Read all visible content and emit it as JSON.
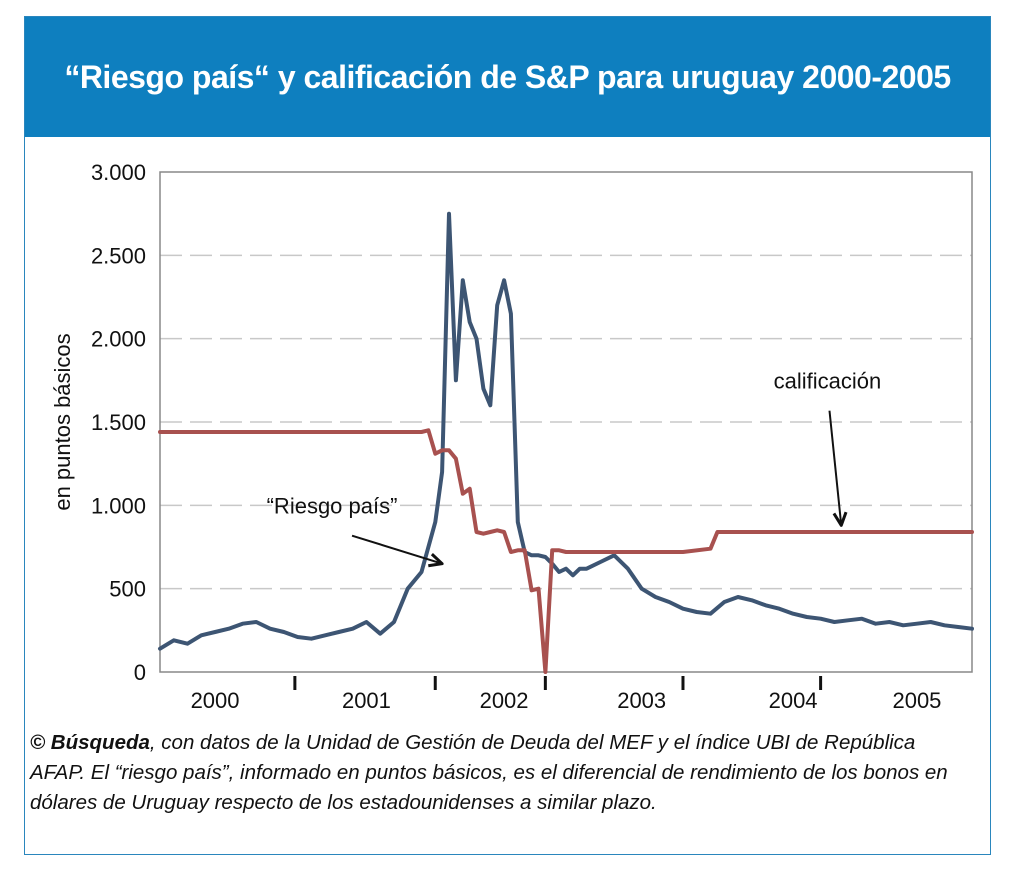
{
  "title": "“Riesgo país“ y calificación de S&P para uruguay 2000-2005",
  "caption": {
    "source_bold": "© Búsqueda",
    "text": ", con datos de la Unidad de Gestión de Deuda del MEF y el índice UBI de República AFAP. El “riesgo país”, informado en puntos básicos, es el diferencial de rendimiento de los bonos en dólares de Uruguay respecto de los estadounidenses a similar plazo."
  },
  "colors": {
    "header": "#0e7fbf",
    "riesgo": "#3d5573",
    "calificacion": "#a8514f",
    "grid": "#c8c8c8"
  },
  "chart_data": {
    "type": "line",
    "ylabel": "en puntos básicos",
    "ylim": [
      0,
      3000
    ],
    "yticks": [
      0,
      500,
      1000,
      1500,
      2000,
      2500,
      3000
    ],
    "ytick_labels": [
      "0",
      "500",
      "1.000",
      "1.500",
      "2.000",
      "2.500",
      "3.000"
    ],
    "xlim": [
      2000.0,
      2005.9
    ],
    "year_labels": [
      "2000",
      "2001",
      "2002",
      "2003",
      "2004",
      "2005"
    ],
    "year_label_x": [
      2000.4,
      2001.5,
      2002.5,
      2003.5,
      2004.6,
      2005.5
    ],
    "year_dividers": [
      2000.98,
      2002.0,
      2002.8,
      2003.8,
      2004.8
    ],
    "grid": true,
    "annotations": [
      {
        "text": "“Riesgo país”",
        "x": 2001.25,
        "y": 950,
        "arrow_to": [
          2002.05,
          650
        ]
      },
      {
        "text": "calificación",
        "x": 2004.85,
        "y": 1700,
        "arrow_to": [
          2004.95,
          880
        ]
      }
    ],
    "series": [
      {
        "name": "“Riesgo país”",
        "x": [
          2000.0,
          2000.1,
          2000.2,
          2000.3,
          2000.4,
          2000.5,
          2000.6,
          2000.7,
          2000.8,
          2000.9,
          2001.0,
          2001.1,
          2001.2,
          2001.3,
          2001.4,
          2001.5,
          2001.6,
          2001.7,
          2001.8,
          2001.9,
          2002.0,
          2002.05,
          2002.1,
          2002.15,
          2002.2,
          2002.25,
          2002.3,
          2002.35,
          2002.4,
          2002.45,
          2002.5,
          2002.55,
          2002.6,
          2002.65,
          2002.7,
          2002.75,
          2002.8,
          2002.85,
          2002.9,
          2002.95,
          2003.0,
          2003.05,
          2003.1,
          2003.2,
          2003.3,
          2003.4,
          2003.5,
          2003.6,
          2003.7,
          2003.8,
          2003.9,
          2004.0,
          2004.1,
          2004.2,
          2004.3,
          2004.4,
          2004.5,
          2004.6,
          2004.7,
          2004.8,
          2004.9,
          2005.0,
          2005.1,
          2005.2,
          2005.3,
          2005.4,
          2005.5,
          2005.6,
          2005.7,
          2005.8,
          2005.9
        ],
        "values": [
          140,
          190,
          170,
          220,
          240,
          260,
          290,
          300,
          260,
          240,
          210,
          200,
          220,
          240,
          260,
          300,
          230,
          300,
          500,
          600,
          900,
          1200,
          2750,
          1750,
          2350,
          2100,
          2000,
          1700,
          1600,
          2200,
          2350,
          2150,
          900,
          720,
          700,
          700,
          690,
          650,
          600,
          620,
          580,
          620,
          620,
          660,
          700,
          620,
          500,
          450,
          420,
          380,
          360,
          350,
          420,
          450,
          430,
          400,
          380,
          350,
          330,
          320,
          300,
          310,
          320,
          290,
          300,
          280,
          290,
          300,
          280,
          270,
          260
        ]
      },
      {
        "name": "calificación",
        "x": [
          2000.0,
          2001.9,
          2001.95,
          2002.0,
          2002.05,
          2002.1,
          2002.15,
          2002.2,
          2002.25,
          2002.3,
          2002.35,
          2002.4,
          2002.45,
          2002.5,
          2002.55,
          2002.6,
          2002.65,
          2002.7,
          2002.75,
          2002.8,
          2002.85,
          2002.9,
          2002.95,
          2003.0,
          2003.2,
          2003.4,
          2003.6,
          2003.8,
          2004.0,
          2004.05,
          2004.1,
          2004.2,
          2005.0,
          2005.9
        ],
        "values": [
          1440,
          1440,
          1450,
          1310,
          1330,
          1330,
          1280,
          1070,
          1100,
          840,
          830,
          840,
          850,
          840,
          720,
          730,
          730,
          490,
          500,
          0,
          730,
          730,
          720,
          720,
          720,
          720,
          720,
          720,
          740,
          840,
          840,
          840,
          840,
          840
        ]
      }
    ]
  }
}
